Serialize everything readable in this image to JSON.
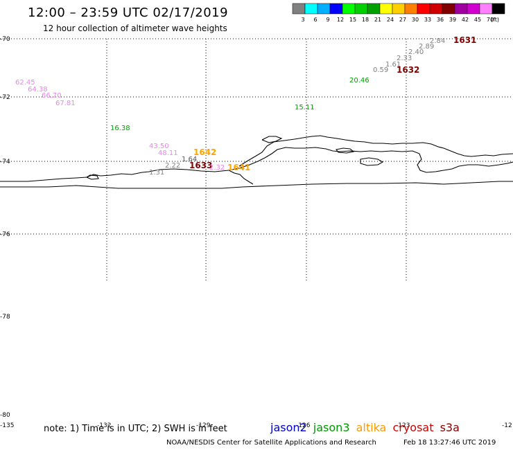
{
  "header": {
    "title": "12:00 – 23:59 UTC 02/17/2019",
    "subtitle": "12 hour collection of altimeter wave heights"
  },
  "legend": {
    "colors": [
      "#808080",
      "#00ffff",
      "#00b0ff",
      "#0000ff",
      "#00ff00",
      "#00d000",
      "#00a000",
      "#ffff00",
      "#ffd000",
      "#ff8000",
      "#ff0000",
      "#d00000",
      "#800000",
      "#a000a0",
      "#d000d0",
      "#ff80ff",
      "#000000"
    ],
    "labels": [
      "3",
      "6",
      "9",
      "12",
      "15",
      "18",
      "21",
      "24",
      "27",
      "30",
      "33",
      "36",
      "39",
      "42",
      "45",
      "70",
      "(ft)"
    ]
  },
  "axes": {
    "lat_labels": [
      "-70",
      "-72",
      "-74",
      "-76",
      "-78",
      "-80"
    ],
    "lon_labels": [
      "-135",
      "-132",
      "-129",
      "-126",
      "-123",
      "-12"
    ]
  },
  "annotations": [
    {
      "text": "62.45",
      "color": "#ee82ee"
    },
    {
      "text": "64.38",
      "color": "#ee82ee"
    },
    {
      "text": "66.70",
      "color": "#ee82ee"
    },
    {
      "text": "67.81",
      "color": "#ee82ee"
    },
    {
      "text": "16.38",
      "color": "#00a000"
    },
    {
      "text": "43.50",
      "color": "#ee82ee"
    },
    {
      "text": "48.11",
      "color": "#ee82ee"
    },
    {
      "text": "1.64",
      "color": "#555555"
    },
    {
      "text": "2.22",
      "color": "#808080"
    },
    {
      "text": "1.31",
      "color": "#808080"
    },
    {
      "text": "1642",
      "color": "#ffa500"
    },
    {
      "text": "1633",
      "color": "#800000"
    },
    {
      "text": "1641",
      "color": "#ffa500"
    },
    {
      "text": "2.32",
      "color": "#ee82ee"
    },
    {
      "text": "15.11",
      "color": "#00a000"
    },
    {
      "text": "20.46",
      "color": "#00a000"
    },
    {
      "text": "0.59",
      "color": "#808080"
    },
    {
      "text": "1.61",
      "color": "#808080"
    },
    {
      "text": "2.33",
      "color": "#808080"
    },
    {
      "text": "2.40",
      "color": "#808080"
    },
    {
      "text": "2.89",
      "color": "#808080"
    },
    {
      "text": "2.84",
      "color": "#808080"
    },
    {
      "text": "1632",
      "color": "#800000"
    },
    {
      "text": "1631",
      "color": "#800000"
    }
  ],
  "footer": {
    "note": "note: 1) Time is in UTC; 2) SWH is in feet",
    "satellites": [
      {
        "name": "jason2",
        "color": "#0000cc"
      },
      {
        "name": "jason3",
        "color": "#009900"
      },
      {
        "name": "altika",
        "color": "#ff9900"
      },
      {
        "name": "cryosat",
        "color": "#cc0000"
      },
      {
        "name": "s3a",
        "color": "#800000"
      }
    ],
    "credit": "NOAA/NESDIS Center for Satellite Applications and Research",
    "timestamp": "Feb 18 13:27:46 UTC 2019"
  }
}
